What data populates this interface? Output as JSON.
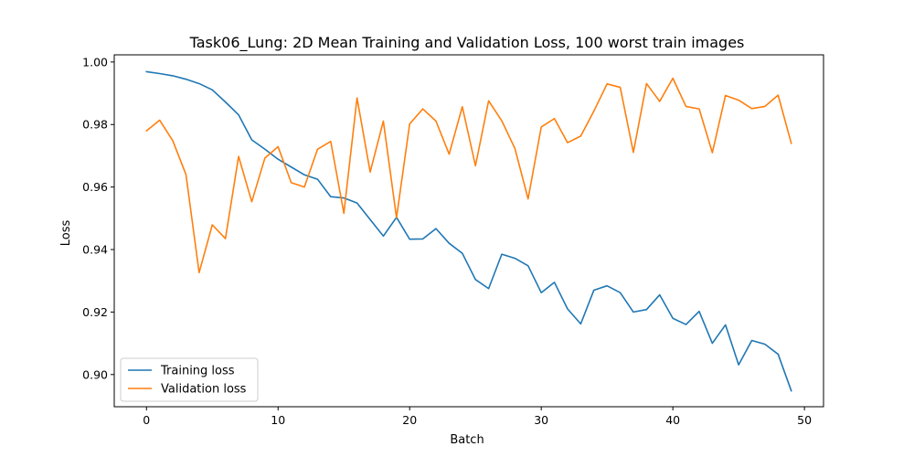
{
  "chart_data": {
    "type": "line",
    "title": "Task06_Lung: 2D Mean Training and Validation Loss, 100 worst train images",
    "xlabel": "Batch",
    "ylabel": "Loss",
    "xlim": [
      -2.45,
      51.45
    ],
    "ylim": [
      0.8897,
      1.0023
    ],
    "xticks": [
      0,
      10,
      20,
      30,
      40,
      50
    ],
    "xtick_labels": [
      "0",
      "10",
      "20",
      "30",
      "40",
      "50"
    ],
    "yticks": [
      0.9,
      0.92,
      0.94,
      0.96,
      0.98,
      1.0
    ],
    "ytick_labels": [
      "0.90",
      "0.92",
      "0.94",
      "0.96",
      "0.98",
      "1.00"
    ],
    "grid": false,
    "legend_position": "lower-left",
    "x": [
      0,
      1,
      2,
      3,
      4,
      5,
      6,
      7,
      8,
      9,
      10,
      11,
      12,
      13,
      14,
      15,
      16,
      17,
      18,
      19,
      20,
      21,
      22,
      23,
      24,
      25,
      26,
      27,
      28,
      29,
      30,
      31,
      32,
      33,
      34,
      35,
      36,
      37,
      38,
      39,
      40,
      41,
      42,
      43,
      44,
      45,
      46,
      47,
      48,
      49
    ],
    "series": [
      {
        "name": "Training loss",
        "color": "#1f77b4",
        "values": [
          0.9969,
          0.9963,
          0.9956,
          0.9945,
          0.9931,
          0.9911,
          0.9872,
          0.9831,
          0.9751,
          0.9721,
          0.9689,
          0.9664,
          0.9639,
          0.9625,
          0.9569,
          0.9565,
          0.9549,
          0.9496,
          0.9443,
          0.9503,
          0.9433,
          0.9434,
          0.9467,
          0.942,
          0.9388,
          0.9304,
          0.9275,
          0.9385,
          0.9372,
          0.9348,
          0.9262,
          0.9295,
          0.921,
          0.9162,
          0.927,
          0.9284,
          0.9262,
          0.92,
          0.9208,
          0.9255,
          0.918,
          0.916,
          0.9202,
          0.91,
          0.9159,
          0.9031,
          0.9109,
          0.9097,
          0.9065,
          0.8948
        ]
      },
      {
        "name": "Validation loss",
        "color": "#ff7f0e",
        "values": [
          0.978,
          0.9814,
          0.9748,
          0.964,
          0.9326,
          0.9479,
          0.9435,
          0.9698,
          0.9553,
          0.9693,
          0.9729,
          0.9614,
          0.96,
          0.9721,
          0.9746,
          0.9516,
          0.9885,
          0.9648,
          0.9811,
          0.9502,
          0.9802,
          0.985,
          0.9811,
          0.9705,
          0.9857,
          0.9668,
          0.9876,
          0.9812,
          0.9723,
          0.9562,
          0.9792,
          0.9819,
          0.9742,
          0.9763,
          0.9843,
          0.993,
          0.9919,
          0.9711,
          0.9931,
          0.9874,
          0.9948,
          0.9858,
          0.985,
          0.971,
          0.9893,
          0.9878,
          0.9851,
          0.9858,
          0.9894,
          0.974
        ]
      }
    ]
  }
}
